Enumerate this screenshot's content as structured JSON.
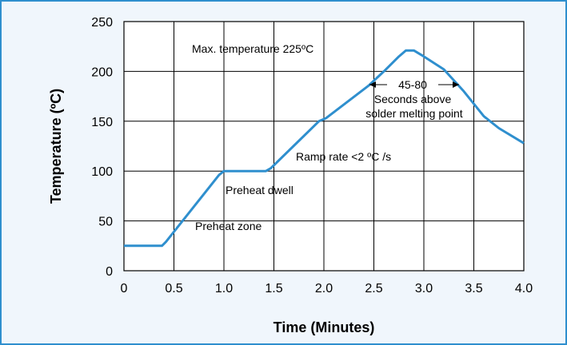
{
  "chart_data": {
    "type": "line",
    "xlabel": "Time (Minutes)",
    "ylabel": "Temperature (ºC)",
    "xlim": [
      0,
      4.0
    ],
    "ylim": [
      0,
      250
    ],
    "x_ticks": [
      "0",
      "0.5",
      "1.0",
      "1.5",
      "2.0",
      "2.5",
      "3.0",
      "3.5",
      "4.0"
    ],
    "y_ticks": [
      "0",
      "50",
      "100",
      "150",
      "200",
      "250"
    ],
    "grid": true,
    "line_color": "#2f8fce",
    "series": [
      {
        "x": [
          0,
          0.38,
          0.42,
          0.95,
          1.0,
          1.42,
          1.47,
          1.95,
          2.02,
          2.45,
          2.6,
          2.75,
          2.82,
          2.9,
          3.0,
          3.2,
          3.4,
          3.6,
          3.75,
          4.0
        ],
        "y": [
          25,
          25,
          29,
          96,
          100,
          100,
          103,
          150,
          153,
          186,
          200,
          215,
          221,
          221,
          215,
          202,
          180,
          155,
          143,
          128
        ]
      }
    ],
    "annotations": {
      "max_temp": "Max. temperature 225ºC",
      "range": "45-80",
      "above_1": "Seconds above",
      "above_2": "solder melting point",
      "ramp": "Ramp rate <2 ºC /s",
      "dwell": "Preheat dwell",
      "zone": "Preheat zone"
    }
  }
}
